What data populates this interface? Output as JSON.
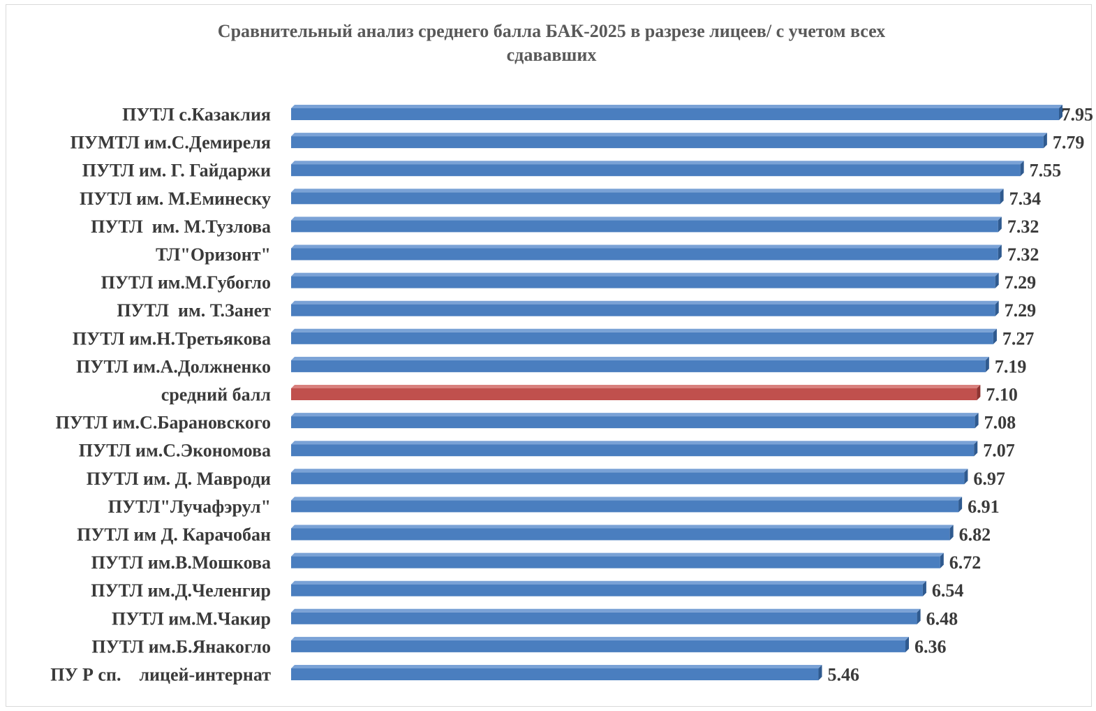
{
  "chart_data": {
    "type": "bar",
    "orientation": "horizontal",
    "title_line1": "Сравнительный анализ среднего балла   БАК-2025 в разрезе лицеев/ с учетом всех",
    "title_line2": "сдававших",
    "categories": [
      "ПУТЛ с.Казаклия",
      "ПУМТЛ им.С.Демиреля",
      "ПУТЛ им. Г. Гайдаржи",
      "ПУТЛ им. М.Еминеску",
      "ПУТЛ  им. М.Тузлова",
      "ТЛ\"Оризонт\"",
      "ПУТЛ им.М.Губогло",
      "ПУТЛ  им. Т.Занет",
      "ПУТЛ им.Н.Третьякова",
      "ПУТЛ им.А.Должненко",
      "средний балл",
      "ПУТЛ им.С.Барановского",
      "ПУТЛ им.С.Экономова",
      "ПУТЛ им. Д. Мавроди",
      "ПУТЛ\"Лучафэрул\"",
      "ПУТЛ им Д. Карачобан",
      "ПУТЛ им.В.Мошкова",
      "ПУТЛ им.Д.Челенгир",
      "ПУТЛ им.М.Чакир",
      "ПУТЛ им.Б.Янакогло",
      "ПУ Р сп.    лицей-интернат"
    ],
    "values": [
      7.95,
      7.79,
      7.55,
      7.34,
      7.32,
      7.32,
      7.29,
      7.29,
      7.27,
      7.19,
      7.1,
      7.08,
      7.07,
      6.97,
      6.91,
      6.82,
      6.72,
      6.54,
      6.48,
      6.36,
      5.46
    ],
    "value_labels": [
      "7.95",
      "7.79",
      "7.55",
      "7.34",
      "7.32",
      "7.32",
      "7.29",
      "7.29",
      "7.27",
      "7.19",
      "7.10",
      "7.08",
      "7.07",
      "6.97",
      "6.91",
      "6.82",
      "6.72",
      "6.54",
      "6.48",
      "6.36",
      "5.46"
    ],
    "highlight_index": 10,
    "xlim": [
      0,
      7.95
    ],
    "grid": false,
    "legend": "none",
    "colors": {
      "bar": "#4a7ebf",
      "bar_side": "#2f5a8f",
      "bar_top": "#7aa2d6",
      "highlight": "#c0504d",
      "highlight_side": "#8e3431",
      "highlight_top": "#d8807d",
      "label_text": "#3a3a3a",
      "title_text": "#595959"
    }
  }
}
